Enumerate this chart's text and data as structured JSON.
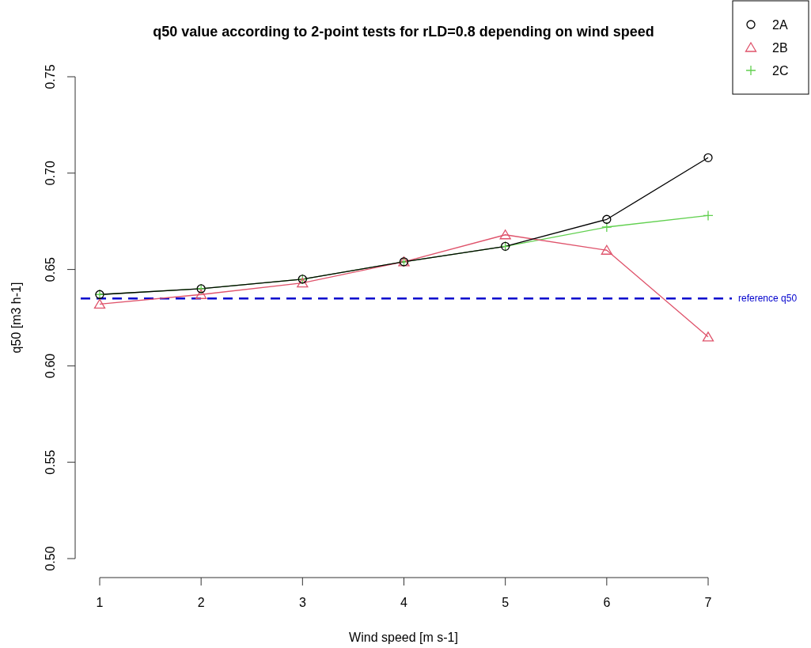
{
  "chart_data": {
    "type": "line",
    "title": "q50 value according to 2-point tests for rLD=0.8 depending on wind speed",
    "xlabel": "Wind speed [m s-1]",
    "ylabel": "q50 [m3 h-1]",
    "x": [
      1,
      2,
      3,
      4,
      5,
      6,
      7
    ],
    "series": [
      {
        "name": "2A",
        "color": "#000000",
        "marker": "circle",
        "values": [
          0.637,
          0.64,
          0.645,
          0.654,
          0.662,
          0.676,
          0.708
        ]
      },
      {
        "name": "2B",
        "color": "#df536b",
        "marker": "triangle",
        "values": [
          0.632,
          0.637,
          0.643,
          0.654,
          0.668,
          0.66,
          0.615
        ]
      },
      {
        "name": "2C",
        "color": "#61d04f",
        "marker": "cross",
        "values": [
          0.637,
          0.64,
          0.645,
          0.654,
          0.662,
          0.672,
          0.678
        ]
      }
    ],
    "xlim": [
      1,
      7
    ],
    "xticks": [
      1,
      2,
      3,
      4,
      5,
      6,
      7
    ],
    "ylim": [
      0.5,
      0.75
    ],
    "yticks": [
      {
        "value": 0.5,
        "label": "0.50"
      },
      {
        "value": 0.55,
        "label": "0.55"
      },
      {
        "value": 0.6,
        "label": "0.60"
      },
      {
        "value": 0.65,
        "label": "0.65"
      },
      {
        "value": 0.7,
        "label": "0.70"
      },
      {
        "value": 0.75,
        "label": "0.75"
      }
    ],
    "ref_lines": [
      {
        "axis": "y",
        "value": 0.635,
        "label": "reference q50",
        "color": "#0000cd",
        "line_style": "dashed"
      }
    ],
    "legend": "top right",
    "grid": false
  }
}
